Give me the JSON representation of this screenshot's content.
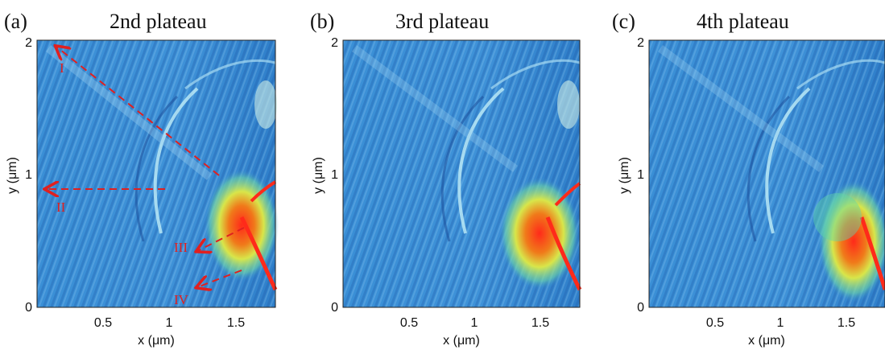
{
  "panels": [
    {
      "id": "a",
      "label": "(a)",
      "title": "2nd plateau",
      "xlabel": "x (μm)",
      "ylabel": "y (μm)",
      "xticks": [
        "0.5",
        "1",
        "1.5"
      ],
      "yticks": [
        "0",
        "1",
        "2"
      ],
      "annotations": [
        "I",
        "II",
        "III",
        "IV"
      ]
    },
    {
      "id": "b",
      "label": "(b)",
      "title": "3rd plateau",
      "xlabel": "x (μm)",
      "ylabel": "y (μm)",
      "xticks": [
        "0.5",
        "1",
        "1.5"
      ],
      "yticks": [
        "0",
        "1",
        "2"
      ],
      "annotations": []
    },
    {
      "id": "c",
      "label": "(c)",
      "title": "4th plateau",
      "xlabel": "x (μm)",
      "ylabel": "y (μm)",
      "xticks": [
        "0.5",
        "1",
        "1.5"
      ],
      "yticks": [
        "0",
        "1",
        "2"
      ],
      "annotations": []
    }
  ],
  "axis_ranges": {
    "x": [
      0,
      1.8
    ],
    "y": [
      0,
      2
    ]
  },
  "colors": {
    "background": "#3a8fd6",
    "arrow": "#e02020",
    "hot": "#ff2a1a",
    "warm": "#e6e84a",
    "mid": "#5fd8a8"
  }
}
